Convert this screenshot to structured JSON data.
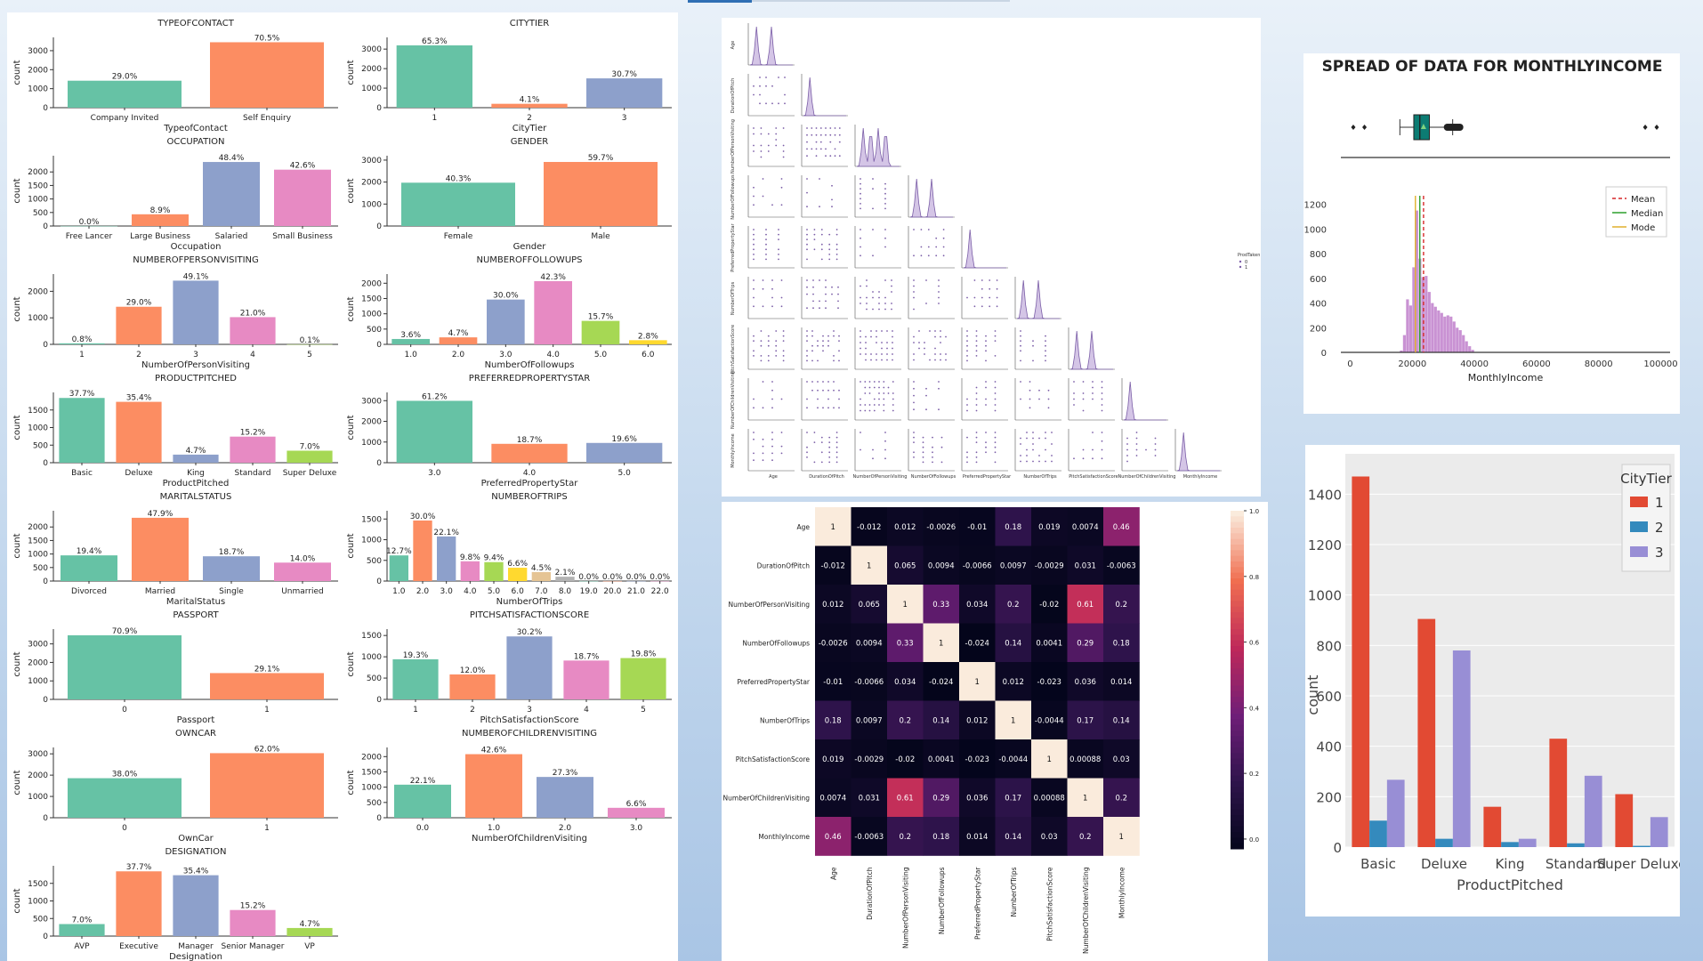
{
  "palette": [
    "#66c2a5",
    "#fc8d62",
    "#8da0cb",
    "#e78ac3",
    "#a6d854",
    "#ffd92f",
    "#e5c494",
    "#b3b3b3"
  ],
  "countplots_label": "count",
  "chart_data": [
    {
      "id": "typeofcontact",
      "type": "bar",
      "title": "TYPEOFCONTACT",
      "xlabel": "TypeofContact",
      "ylabel": "count",
      "categories": [
        "Company Invited",
        "Self Enquiry"
      ],
      "values": [
        1419,
        3444
      ],
      "labels": [
        "29.0%",
        "70.5%"
      ],
      "ylim": [
        0,
        3700
      ],
      "yticks": [
        0,
        1000,
        2000,
        3000
      ]
    },
    {
      "id": "citytier",
      "type": "bar",
      "title": "CITYTIER",
      "xlabel": "CityTier",
      "ylabel": "count",
      "categories": [
        "1",
        "2",
        "3"
      ],
      "values": [
        3190,
        198,
        1500
      ],
      "labels": [
        "65.3%",
        "4.1%",
        "30.7%"
      ],
      "ylim": [
        0,
        3600
      ],
      "yticks": [
        0,
        1000,
        2000,
        3000
      ]
    },
    {
      "id": "occupation",
      "type": "bar",
      "title": "OCCUPATION",
      "xlabel": "Occupation",
      "ylabel": "count",
      "categories": [
        "Free Lancer",
        "Large Business",
        "Salaried",
        "Small Business"
      ],
      "values": [
        2,
        434,
        2368,
        2084
      ],
      "labels": [
        "0.0%",
        "8.9%",
        "48.4%",
        "42.6%"
      ],
      "ylim": [
        0,
        2600
      ],
      "yticks": [
        0,
        500,
        1000,
        1500,
        2000
      ]
    },
    {
      "id": "gender",
      "type": "bar",
      "title": "GENDER",
      "xlabel": "Gender",
      "ylabel": "count",
      "categories": [
        "Female",
        "Male"
      ],
      "values": [
        1972,
        2916
      ],
      "labels": [
        "40.3%",
        "59.7%"
      ],
      "ylim": [
        0,
        3200
      ],
      "yticks": [
        0,
        1000,
        2000,
        3000
      ]
    },
    {
      "id": "numberofpersonvisiting",
      "type": "bar",
      "title": "NUMBEROFPERSONVISITING",
      "xlabel": "NumberOfPersonVisiting",
      "ylabel": "count",
      "categories": [
        "1",
        "2",
        "3",
        "4",
        "5"
      ],
      "values": [
        39,
        1418,
        2402,
        1026,
        3
      ],
      "labels": [
        "0.8%",
        "29.0%",
        "49.1%",
        "21.0%",
        "0.1%"
      ],
      "ylim": [
        0,
        2650
      ],
      "yticks": [
        0,
        1000,
        2000
      ]
    },
    {
      "id": "numberoffollowups",
      "type": "bar",
      "title": "NUMBEROFFOLLOWUPS",
      "xlabel": "NumberOfFollowups",
      "ylabel": "count",
      "categories": [
        "1.0",
        "2.0",
        "3.0",
        "4.0",
        "5.0",
        "6.0"
      ],
      "values": [
        176,
        229,
        1466,
        2068,
        768,
        136
      ],
      "labels": [
        "3.6%",
        "4.7%",
        "30.0%",
        "42.3%",
        "15.7%",
        "2.8%"
      ],
      "ylim": [
        0,
        2300
      ],
      "yticks": [
        0,
        500,
        1000,
        1500,
        2000
      ]
    },
    {
      "id": "productpitched",
      "type": "bar",
      "title": "PRODUCTPITCHED",
      "xlabel": "ProductPitched",
      "ylabel": "count",
      "categories": [
        "Basic",
        "Deluxe",
        "King",
        "Standard",
        "Super Deluxe"
      ],
      "values": [
        1842,
        1732,
        230,
        742,
        342
      ],
      "labels": [
        "37.7%",
        "35.4%",
        "4.7%",
        "15.2%",
        "7.0%"
      ],
      "ylim": [
        0,
        2000
      ],
      "yticks": [
        0,
        500,
        1000,
        1500
      ]
    },
    {
      "id": "preferredpropertystar",
      "type": "bar",
      "title": "PREFERREDPROPERTYSTAR",
      "xlabel": "PreferredPropertyStar",
      "ylabel": "count",
      "categories": [
        "3.0",
        "4.0",
        "5.0"
      ],
      "values": [
        2993,
        913,
        956
      ],
      "labels": [
        "61.2%",
        "18.7%",
        "19.6%"
      ],
      "ylim": [
        0,
        3400
      ],
      "yticks": [
        0,
        1000,
        2000,
        3000
      ]
    },
    {
      "id": "maritalstatus",
      "type": "bar",
      "title": "MARITALSTATUS",
      "xlabel": "MaritalStatus",
      "ylabel": "count",
      "categories": [
        "Divorced",
        "Married",
        "Single",
        "Unmarried"
      ],
      "values": [
        950,
        2340,
        916,
        682
      ],
      "labels": [
        "19.4%",
        "47.9%",
        "18.7%",
        "14.0%"
      ],
      "ylim": [
        0,
        2600
      ],
      "yticks": [
        0,
        500,
        1000,
        1500,
        2000
      ]
    },
    {
      "id": "numberoftrips",
      "type": "bar",
      "title": "NUMBEROFTRIPS",
      "xlabel": "NumberOfTrips",
      "ylabel": "count",
      "categories": [
        "1.0",
        "2.0",
        "3.0",
        "4.0",
        "5.0",
        "6.0",
        "7.0",
        "8.0",
        "19.0",
        "20.0",
        "21.0",
        "22.0"
      ],
      "values": [
        620,
        1464,
        1079,
        478,
        458,
        322,
        218,
        105,
        1,
        1,
        1,
        1
      ],
      "labels": [
        "12.7%",
        "30.0%",
        "22.1%",
        "9.8%",
        "9.4%",
        "6.6%",
        "4.5%",
        "2.1%",
        "0.0%",
        "0.0%",
        "0.0%",
        "0.0%"
      ],
      "ylim": [
        0,
        1700
      ],
      "yticks": [
        0,
        500,
        1000,
        1500
      ]
    },
    {
      "id": "passport",
      "type": "bar",
      "title": "PASSPORT",
      "xlabel": "Passport",
      "ylabel": "count",
      "categories": [
        "0",
        "1"
      ],
      "values": [
        3466,
        1422
      ],
      "labels": [
        "70.9%",
        "29.1%"
      ],
      "ylim": [
        0,
        3800
      ],
      "yticks": [
        0,
        1000,
        2000,
        3000
      ]
    },
    {
      "id": "pitchsatisfactionscore",
      "type": "bar",
      "title": "PITCHSATISFACTIONSCORE",
      "xlabel": "PitchSatisfactionScore",
      "ylabel": "count",
      "categories": [
        "1",
        "2",
        "3",
        "4",
        "5"
      ],
      "values": [
        942,
        586,
        1478,
        912,
        970
      ],
      "labels": [
        "19.3%",
        "12.0%",
        "30.2%",
        "18.7%",
        "19.8%"
      ],
      "ylim": [
        0,
        1650
      ],
      "yticks": [
        0,
        500,
        1000,
        1500
      ]
    },
    {
      "id": "owncar",
      "type": "bar",
      "title": "OWNCAR",
      "xlabel": "OwnCar",
      "ylabel": "count",
      "categories": [
        "0",
        "1"
      ],
      "values": [
        1856,
        3032
      ],
      "labels": [
        "38.0%",
        "62.0%"
      ],
      "ylim": [
        0,
        3300
      ],
      "yticks": [
        0,
        1000,
        2000,
        3000
      ]
    },
    {
      "id": "numberofchildrenvisiting",
      "type": "bar",
      "title": "NUMBEROFCHILDRENVISITING",
      "xlabel": "NumberOfChildrenVisiting",
      "ylabel": "count",
      "categories": [
        "0.0",
        "1.0",
        "2.0",
        "3.0"
      ],
      "values": [
        1082,
        2080,
        1335,
        325
      ],
      "labels": [
        "22.1%",
        "42.6%",
        "27.3%",
        "6.6%"
      ],
      "ylim": [
        0,
        2300
      ],
      "yticks": [
        0,
        500,
        1000,
        1500,
        2000
      ]
    },
    {
      "id": "designation",
      "type": "bar",
      "title": "DESIGNATION",
      "xlabel": "Designation",
      "ylabel": "count",
      "categories": [
        "AVP",
        "Executive",
        "Manager",
        "Senior Manager",
        "VP"
      ],
      "values": [
        342,
        1842,
        1732,
        742,
        230
      ],
      "labels": [
        "7.0%",
        "37.7%",
        "35.4%",
        "15.2%",
        "4.7%"
      ],
      "ylim": [
        0,
        2000
      ],
      "yticks": [
        0,
        500,
        1000,
        1500
      ]
    },
    {
      "id": "pairplot",
      "type": "scatter",
      "variables": [
        "Age",
        "DurationOfPitch",
        "NumberOfPersonVisiting",
        "NumberOfFollowups",
        "PreferredPropertyStar",
        "NumberOfTrips",
        "PitchSatisfactionScore",
        "NumberOfChildrenVisiting",
        "MonthlyIncome"
      ],
      "hue": "ProdTaken",
      "hue_levels": [
        "0",
        "1"
      ],
      "color": "#7b5ea7"
    },
    {
      "id": "correlation",
      "type": "heatmap",
      "labels": [
        "Age",
        "DurationOfPitch",
        "NumberOfPersonVisiting",
        "NumberOfFollowups",
        "PreferredPropertyStar",
        "NumberOfTrips",
        "PitchSatisfactionScore",
        "NumberOfChildrenVisiting",
        "MonthlyIncome"
      ],
      "cells": [
        [
          "1",
          "-0.012",
          "0.012",
          "-0.0026",
          "-0.01",
          "0.18",
          "0.019",
          "0.0074",
          "0.46"
        ],
        [
          "-0.012",
          "1",
          "0.065",
          "0.0094",
          "-0.0066",
          "0.0097",
          "-0.0029",
          "0.031",
          "-0.0063"
        ],
        [
          "0.012",
          "0.065",
          "1",
          "0.33",
          "0.034",
          "0.2",
          "-0.02",
          "0.61",
          "0.2"
        ],
        [
          "-0.0026",
          "0.0094",
          "0.33",
          "1",
          "-0.024",
          "0.14",
          "0.0041",
          "0.29",
          "0.18"
        ],
        [
          "-0.01",
          "-0.0066",
          "0.034",
          "-0.024",
          "1",
          "0.012",
          "-0.023",
          "0.036",
          "0.014"
        ],
        [
          "0.18",
          "0.0097",
          "0.2",
          "0.14",
          "0.012",
          "1",
          "-0.0044",
          "0.17",
          "0.14"
        ],
        [
          "0.019",
          "-0.0029",
          "-0.02",
          "0.0041",
          "-0.023",
          "-0.0044",
          "1",
          "0.00088",
          "0.03"
        ],
        [
          "0.0074",
          "0.031",
          "0.61",
          "0.29",
          "0.036",
          "0.17",
          "0.00088",
          "1",
          "0.2"
        ],
        [
          "0.46",
          "-0.0063",
          "0.2",
          "0.18",
          "0.014",
          "0.14",
          "0.03",
          "0.2",
          "1"
        ]
      ],
      "colorbar_ticks": [
        "0.0",
        "0.2",
        "0.4",
        "0.6",
        "0.8",
        "1.0"
      ],
      "vmin": -0.03,
      "vmax": 1.0
    },
    {
      "id": "monthlyincome",
      "type": "histogram",
      "title": "SPREAD OF DATA FOR MONTHLYINCOME",
      "xlabel": "MonthlyIncome",
      "xlim": [
        -3000,
        103000
      ],
      "ylim": [
        0,
        1270
      ],
      "xticks": [
        0,
        20000,
        40000,
        60000,
        80000,
        100000
      ],
      "yticks": [
        0,
        200,
        400,
        600,
        800,
        1000,
        1200
      ],
      "bins": [
        [
          16000,
          17000,
          15
        ],
        [
          17000,
          18000,
          140
        ],
        [
          18000,
          19000,
          430
        ],
        [
          19000,
          20000,
          380
        ],
        [
          20000,
          21000,
          690
        ],
        [
          21000,
          22000,
          1150
        ],
        [
          22000,
          23000,
          760
        ],
        [
          23000,
          24000,
          610
        ],
        [
          24000,
          25000,
          620
        ],
        [
          25000,
          26000,
          490
        ],
        [
          26000,
          27000,
          400
        ],
        [
          27000,
          28000,
          370
        ],
        [
          28000,
          29000,
          340
        ],
        [
          29000,
          30000,
          320
        ],
        [
          30000,
          31000,
          290
        ],
        [
          31000,
          32000,
          300
        ],
        [
          32000,
          33000,
          290
        ],
        [
          33000,
          34000,
          250
        ],
        [
          34000,
          35000,
          200
        ],
        [
          35000,
          36000,
          180
        ],
        [
          36000,
          37000,
          140
        ],
        [
          37000,
          38000,
          90
        ],
        [
          38000,
          39000,
          50
        ],
        [
          39000,
          40000,
          20
        ]
      ],
      "mean": 23620,
      "median": 22420,
      "mode": 21000,
      "legend": [
        "Mean",
        "Median",
        "Mode"
      ],
      "box": {
        "whisker_low": 16000,
        "q1": 20480,
        "median": 22420,
        "q3": 25500,
        "whisker_high": 33000,
        "outliers": [
          1000,
          4600,
          95000,
          98700
        ]
      }
    },
    {
      "id": "citytier_by_product",
      "type": "bar",
      "xlabel": "ProductPitched",
      "ylabel": "count",
      "legend_title": "CityTier",
      "categories": [
        "Basic",
        "Deluxe",
        "King",
        "Standard",
        "Super Deluxe"
      ],
      "series": [
        {
          "name": "1",
          "values": [
            1470,
            905,
            160,
            430,
            210
          ]
        },
        {
          "name": "2",
          "values": [
            105,
            33,
            20,
            15,
            5
          ]
        },
        {
          "name": "3",
          "values": [
            267,
            780,
            33,
            283,
            119
          ]
        }
      ],
      "ylim": [
        0,
        1560
      ],
      "yticks": [
        0,
        200,
        400,
        600,
        800,
        1000,
        1200,
        1400
      ]
    }
  ]
}
